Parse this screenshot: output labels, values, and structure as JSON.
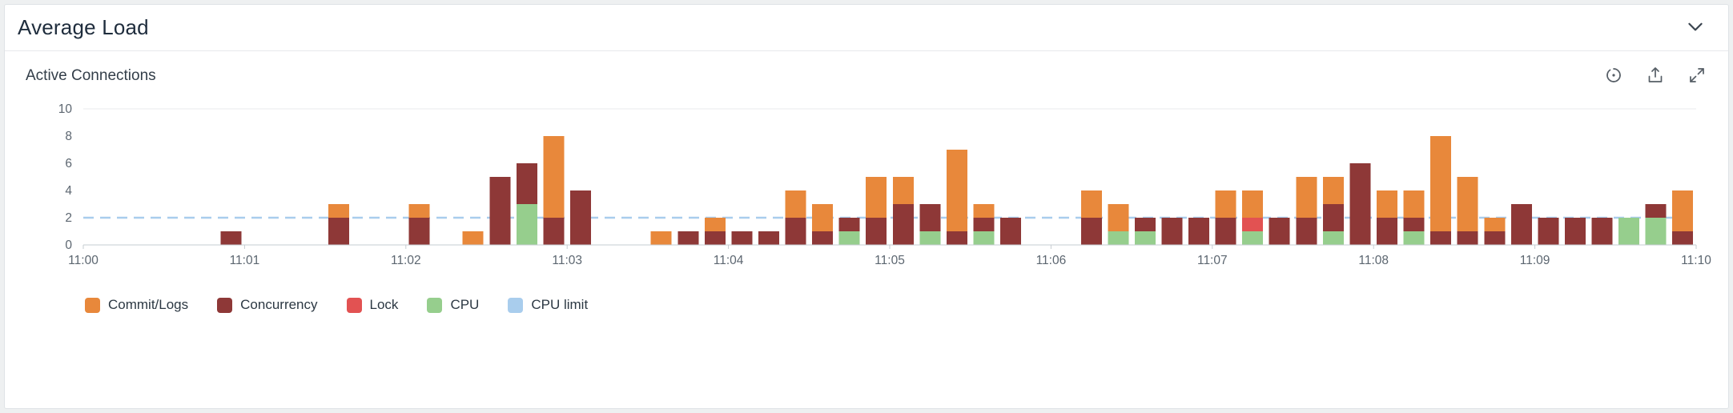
{
  "header": {
    "title": "Average Load"
  },
  "chart": {
    "title": "Active Connections"
  },
  "toolbar": {
    "icons": [
      "auto-refresh-icon",
      "export-icon",
      "expand-icon"
    ],
    "collapse_icon": "chevron-down-icon"
  },
  "colors": {
    "commit": "#E8883B",
    "concurrency": "#8E3837",
    "lock": "#E25252",
    "cpu": "#96CE8D",
    "cpu_limit": "#A9CDED",
    "axis_line": "#c6ccd2",
    "grid_line": "#e9ebed",
    "tick_text": "#5c6670"
  },
  "chart_data": {
    "type": "bar",
    "stacked": true,
    "title": "Active Connections",
    "xlabel": "",
    "ylabel": "",
    "ylim": [
      0,
      10
    ],
    "yticks": [
      0,
      2,
      4,
      6,
      8,
      10
    ],
    "xticks": [
      "11:00",
      "11:01",
      "11:02",
      "11:03",
      "11:04",
      "11:05",
      "11:06",
      "11:07",
      "11:08",
      "11:09",
      "11:10"
    ],
    "x_range_minutes": 10,
    "bar_interval_seconds": 10,
    "grid": false,
    "legend_position": "bottom",
    "reference_line": {
      "label": "CPU limit",
      "value": 2,
      "style": "dashed"
    },
    "series_order_bottom_to_top": [
      "cpu",
      "lock",
      "concurrency",
      "commit"
    ],
    "legend": [
      {
        "key": "commit",
        "label": "Commit/Logs"
      },
      {
        "key": "concurrency",
        "label": "Concurrency"
      },
      {
        "key": "lock",
        "label": "Lock"
      },
      {
        "key": "cpu",
        "label": "CPU"
      },
      {
        "key": "cpu_limit",
        "label": "CPU limit"
      }
    ],
    "bars": [
      {
        "time": "11:00:50",
        "cpu": 0,
        "lock": 0,
        "concurrency": 1,
        "commit": 0
      },
      {
        "time": "11:01:30",
        "cpu": 0,
        "lock": 0,
        "concurrency": 2,
        "commit": 1
      },
      {
        "time": "11:02:00",
        "cpu": 0,
        "lock": 0,
        "concurrency": 2,
        "commit": 1
      },
      {
        "time": "11:02:20",
        "cpu": 0,
        "lock": 0,
        "concurrency": 0,
        "commit": 1
      },
      {
        "time": "11:02:30",
        "cpu": 0,
        "lock": 0,
        "concurrency": 5,
        "commit": 0
      },
      {
        "time": "11:02:40",
        "cpu": 3,
        "lock": 0,
        "concurrency": 3,
        "commit": 0
      },
      {
        "time": "11:02:50",
        "cpu": 0,
        "lock": 0,
        "concurrency": 2,
        "commit": 6
      },
      {
        "time": "11:03:00",
        "cpu": 0,
        "lock": 0,
        "concurrency": 4,
        "commit": 0
      },
      {
        "time": "11:03:30",
        "cpu": 0,
        "lock": 0,
        "concurrency": 0,
        "commit": 1
      },
      {
        "time": "11:03:40",
        "cpu": 0,
        "lock": 0,
        "concurrency": 1,
        "commit": 0
      },
      {
        "time": "11:03:50",
        "cpu": 0,
        "lock": 0,
        "concurrency": 1,
        "commit": 1
      },
      {
        "time": "11:04:00",
        "cpu": 0,
        "lock": 0,
        "concurrency": 1,
        "commit": 0
      },
      {
        "time": "11:04:10",
        "cpu": 0,
        "lock": 0,
        "concurrency": 1,
        "commit": 0
      },
      {
        "time": "11:04:20",
        "cpu": 0,
        "lock": 0,
        "concurrency": 2,
        "commit": 2
      },
      {
        "time": "11:04:30",
        "cpu": 0,
        "lock": 0,
        "concurrency": 1,
        "commit": 2
      },
      {
        "time": "11:04:40",
        "cpu": 1,
        "lock": 0,
        "concurrency": 1,
        "commit": 0
      },
      {
        "time": "11:04:50",
        "cpu": 0,
        "lock": 0,
        "concurrency": 2,
        "commit": 3
      },
      {
        "time": "11:05:00",
        "cpu": 0,
        "lock": 0,
        "concurrency": 3,
        "commit": 2
      },
      {
        "time": "11:05:10",
        "cpu": 1,
        "lock": 0,
        "concurrency": 2,
        "commit": 0
      },
      {
        "time": "11:05:20",
        "cpu": 0,
        "lock": 0,
        "concurrency": 1,
        "commit": 6
      },
      {
        "time": "11:05:30",
        "cpu": 1,
        "lock": 0,
        "concurrency": 1,
        "commit": 1
      },
      {
        "time": "11:05:40",
        "cpu": 0,
        "lock": 0,
        "concurrency": 2,
        "commit": 0
      },
      {
        "time": "11:06:10",
        "cpu": 0,
        "lock": 0,
        "concurrency": 2,
        "commit": 2
      },
      {
        "time": "11:06:20",
        "cpu": 1,
        "lock": 0,
        "concurrency": 0,
        "commit": 2
      },
      {
        "time": "11:06:30",
        "cpu": 1,
        "lock": 0,
        "concurrency": 1,
        "commit": 0
      },
      {
        "time": "11:06:40",
        "cpu": 0,
        "lock": 0,
        "concurrency": 2,
        "commit": 0
      },
      {
        "time": "11:06:50",
        "cpu": 0,
        "lock": 0,
        "concurrency": 2,
        "commit": 0
      },
      {
        "time": "11:07:00",
        "cpu": 0,
        "lock": 0,
        "concurrency": 2,
        "commit": 2
      },
      {
        "time": "11:07:10",
        "cpu": 1,
        "lock": 1,
        "concurrency": 0,
        "commit": 2
      },
      {
        "time": "11:07:20",
        "cpu": 0,
        "lock": 0,
        "concurrency": 2,
        "commit": 0
      },
      {
        "time": "11:07:30",
        "cpu": 0,
        "lock": 0,
        "concurrency": 2,
        "commit": 3
      },
      {
        "time": "11:07:40",
        "cpu": 1,
        "lock": 0,
        "concurrency": 2,
        "commit": 2
      },
      {
        "time": "11:07:50",
        "cpu": 0,
        "lock": 0,
        "concurrency": 6,
        "commit": 0
      },
      {
        "time": "11:08:00",
        "cpu": 0,
        "lock": 0,
        "concurrency": 2,
        "commit": 2
      },
      {
        "time": "11:08:10",
        "cpu": 1,
        "lock": 0,
        "concurrency": 1,
        "commit": 2
      },
      {
        "time": "11:08:20",
        "cpu": 0,
        "lock": 0,
        "concurrency": 1,
        "commit": 7
      },
      {
        "time": "11:08:30",
        "cpu": 0,
        "lock": 0,
        "concurrency": 1,
        "commit": 4
      },
      {
        "time": "11:08:40",
        "cpu": 0,
        "lock": 0,
        "concurrency": 1,
        "commit": 1
      },
      {
        "time": "11:08:50",
        "cpu": 0,
        "lock": 0,
        "concurrency": 3,
        "commit": 0
      },
      {
        "time": "11:09:00",
        "cpu": 0,
        "lock": 0,
        "concurrency": 2,
        "commit": 0
      },
      {
        "time": "11:09:10",
        "cpu": 0,
        "lock": 0,
        "concurrency": 2,
        "commit": 0
      },
      {
        "time": "11:09:20",
        "cpu": 0,
        "lock": 0,
        "concurrency": 2,
        "commit": 0
      },
      {
        "time": "11:09:30",
        "cpu": 2,
        "lock": 0,
        "concurrency": 0,
        "commit": 0
      },
      {
        "time": "11:09:40",
        "cpu": 2,
        "lock": 0,
        "concurrency": 1,
        "commit": 0
      },
      {
        "time": "11:09:50",
        "cpu": 0,
        "lock": 0,
        "concurrency": 1,
        "commit": 3
      }
    ]
  }
}
